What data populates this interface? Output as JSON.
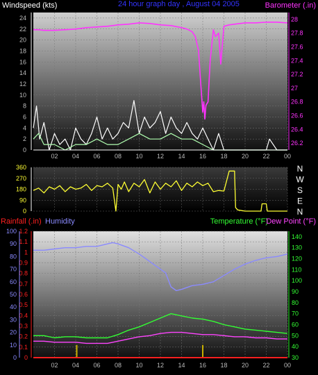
{
  "colors": {
    "wind": "#ffffff",
    "gust": "#b0ffb0",
    "baro": "#ff33ff",
    "dir": "#ffff33",
    "rain": "#ff2020",
    "humidity": "#8a8aff",
    "temp": "#33ff33",
    "dew": "#ff44ff",
    "rainbar": "#c8b000",
    "axis": "#ffffff",
    "tick": "#bbbbbb"
  },
  "chart_data": [
    {
      "type": "line",
      "title": "24 hour graph day , August 04 2005",
      "ylabel_left": "Windspeed (kts)",
      "ylabel_right": "Barometer (.in)",
      "x_ticks": [
        "02",
        "04",
        "06",
        "08",
        "10",
        "12",
        "14",
        "16",
        "18",
        "20",
        "22",
        "00"
      ],
      "xlim": [
        0,
        24
      ],
      "ylim_left": [
        0,
        25
      ],
      "y_ticks_left": [
        0,
        2,
        4,
        6,
        8,
        10,
        12,
        14,
        16,
        18,
        20,
        22,
        24
      ],
      "ylim_right": [
        26.1,
        28.1
      ],
      "y_ticks_right": [
        "26.2",
        "26.4",
        "26.6",
        "26.8",
        "27",
        "27.2",
        "27.4",
        "27.6",
        "27.8",
        "28"
      ],
      "series": [
        {
          "axis": "right",
          "x": [
            0,
            0.5,
            1,
            2,
            3,
            4,
            5,
            6,
            7,
            8,
            9,
            10,
            11,
            12,
            13,
            14,
            14.5,
            15,
            15.3,
            15.6,
            15.8,
            16,
            16.1,
            16.2,
            16.3,
            16.5,
            16.7,
            17,
            17.2,
            17.5,
            17.7,
            18,
            18.5,
            19,
            20,
            21,
            22,
            23,
            24
          ],
          "values": [
            27.85,
            27.85,
            27.84,
            27.84,
            27.85,
            27.86,
            27.88,
            27.89,
            27.9,
            27.92,
            27.93,
            27.95,
            27.94,
            27.92,
            27.91,
            27.88,
            27.86,
            27.82,
            27.75,
            27.55,
            27.1,
            26.65,
            26.8,
            26.55,
            26.75,
            26.8,
            27.4,
            27.85,
            27.75,
            27.8,
            27.35,
            27.9,
            27.92,
            27.93,
            27.95,
            27.95,
            27.96,
            27.96,
            27.95
          ]
        },
        {
          "axis": "left",
          "x": [
            0,
            0.3,
            0.6,
            1,
            1.5,
            2,
            2.5,
            3,
            3.5,
            4,
            4.5,
            5,
            5.5,
            6,
            6.5,
            7,
            7.5,
            8,
            8.5,
            9,
            9.5,
            10,
            10.5,
            11,
            11.5,
            12,
            12.5,
            13,
            13.5,
            14,
            14.5,
            15,
            15.5,
            16,
            16.5,
            17,
            17.5,
            18,
            19,
            20,
            21,
            22,
            22.3,
            23,
            24
          ],
          "values": [
            4,
            8,
            2,
            5,
            0,
            3,
            1,
            2,
            0,
            4,
            2,
            1,
            3,
            6,
            2,
            4,
            2,
            3,
            5,
            4,
            9,
            3,
            6,
            4,
            5,
            7,
            3,
            6,
            4,
            3,
            5,
            3,
            2,
            4,
            2,
            0,
            3,
            0,
            0,
            0,
            0,
            0,
            2,
            0,
            0
          ]
        },
        {
          "axis": "left",
          "x": [
            0,
            0.5,
            1,
            2,
            3,
            4,
            5,
            6,
            7,
            8,
            9,
            10,
            11,
            12,
            13,
            14,
            15,
            16,
            17,
            18,
            19,
            20,
            21,
            22,
            23,
            24
          ],
          "values": [
            2,
            3,
            1,
            1,
            0,
            1,
            1,
            2,
            1,
            1,
            2,
            3,
            2,
            2,
            3,
            2,
            2,
            1,
            0,
            0,
            0,
            0,
            0,
            0,
            0,
            0
          ]
        }
      ]
    },
    {
      "type": "line",
      "ylim": [
        0,
        360
      ],
      "xlim": [
        0,
        24
      ],
      "y_ticks": [
        0,
        90,
        180,
        270,
        360
      ],
      "y_tick_labels": [
        "0",
        "90",
        "180",
        "270",
        "360"
      ],
      "compass_labels": [
        "N",
        "W",
        "S",
        "E",
        "N"
      ],
      "series": [
        {
          "x": [
            0,
            0.5,
            1,
            1.5,
            2,
            2.5,
            3,
            3.5,
            4,
            4.5,
            5,
            5.5,
            6,
            6.5,
            7,
            7.5,
            7.8,
            8,
            8.3,
            8.6,
            9,
            9.5,
            10,
            10.5,
            11,
            11.5,
            12,
            12.5,
            13,
            13.5,
            14,
            14.5,
            15,
            15.5,
            16,
            16.5,
            17,
            17.5,
            18,
            18.5,
            19,
            19.1,
            19.3,
            20,
            21,
            21.5,
            21.6,
            22,
            22.1,
            22.5,
            23,
            24
          ],
          "values": [
            170,
            190,
            150,
            200,
            180,
            210,
            160,
            200,
            180,
            190,
            220,
            170,
            210,
            200,
            230,
            190,
            0,
            220,
            180,
            240,
            160,
            230,
            200,
            260,
            150,
            240,
            180,
            230,
            200,
            250,
            170,
            230,
            200,
            240,
            210,
            230,
            160,
            170,
            165,
            330,
            330,
            30,
            10,
            0,
            0,
            0,
            60,
            60,
            0,
            0,
            0,
            0
          ]
        }
      ]
    },
    {
      "type": "line",
      "ylabel_left_1": "Rainfall (.in)",
      "ylabel_left_2": "Humidity",
      "ylabel_right_1": "Temperature (°F)",
      "ylabel_right_2": "Dew Point (°F)",
      "xlim": [
        0,
        24
      ],
      "x_ticks": [
        "02",
        "04",
        "06",
        "08",
        "10",
        "12",
        "14",
        "16",
        "18",
        "20",
        "22",
        "00"
      ],
      "ylim_rain": [
        0,
        1.2
      ],
      "y_ticks_rain": [
        "0",
        "0.1",
        "0.2",
        "0.3",
        "0.4",
        "0.5",
        "0.6",
        "0.7",
        "0.8",
        "0.9",
        "1",
        "1.1",
        "1.2"
      ],
      "ylim_humidity": [
        0,
        100
      ],
      "y_ticks_humidity": [
        "0",
        "10",
        "20",
        "30",
        "40",
        "50",
        "60",
        "70",
        "80",
        "90",
        "100"
      ],
      "ylim_temp": [
        30,
        145
      ],
      "y_ticks_temp": [
        "30",
        "40",
        "50",
        "60",
        "70",
        "80",
        "90",
        "100",
        "110",
        "120",
        "130",
        "140"
      ],
      "series": [
        {
          "name": "Humidity",
          "axis": "humidity",
          "x": [
            0,
            1,
            2,
            3,
            4,
            5,
            6,
            7,
            7.5,
            8,
            9,
            10,
            11,
            12,
            12.5,
            13,
            13.5,
            14,
            15,
            16,
            17,
            18,
            19,
            20,
            21,
            22,
            23,
            24
          ],
          "values": [
            85,
            85,
            86,
            87,
            87,
            88,
            88,
            90,
            91,
            90,
            87,
            82,
            76,
            70,
            67,
            56,
            53,
            54,
            57,
            58,
            60,
            65,
            70,
            74,
            77,
            79,
            80,
            82
          ]
        },
        {
          "name": "Temperature (°F)",
          "axis": "temp",
          "x": [
            0,
            1,
            2,
            3,
            4,
            5,
            6,
            7,
            8,
            9,
            10,
            11,
            12,
            12.5,
            13,
            13.5,
            14,
            15,
            16,
            17,
            18,
            19,
            20,
            21,
            22,
            23,
            24
          ],
          "values": [
            50,
            50,
            48,
            49,
            49,
            48,
            48,
            48,
            51,
            55,
            58,
            62,
            66,
            68,
            70,
            69,
            68,
            66,
            65,
            63,
            60,
            58,
            56,
            55,
            54,
            53,
            52
          ]
        },
        {
          "name": "Dew Point (°F)",
          "axis": "temp",
          "x": [
            0,
            1,
            2,
            3,
            4,
            5,
            6,
            7,
            8,
            9,
            10,
            11,
            12,
            13,
            14,
            15,
            16,
            17,
            18,
            19,
            20,
            21,
            22,
            23,
            24
          ],
          "values": [
            45,
            45,
            44,
            44,
            44,
            43,
            43,
            43,
            45,
            47,
            49,
            50,
            52,
            53,
            53,
            52,
            51,
            51,
            50,
            49,
            49,
            48,
            48,
            47,
            47
          ]
        },
        {
          "name": "Rainfall (.in)",
          "axis": "rain",
          "x": [
            0,
            24
          ],
          "values": [
            0,
            0
          ]
        }
      ],
      "rain_bars": [
        {
          "x": 4.1,
          "value": 0.12
        },
        {
          "x": 16.0,
          "value": 0.12
        }
      ]
    }
  ]
}
